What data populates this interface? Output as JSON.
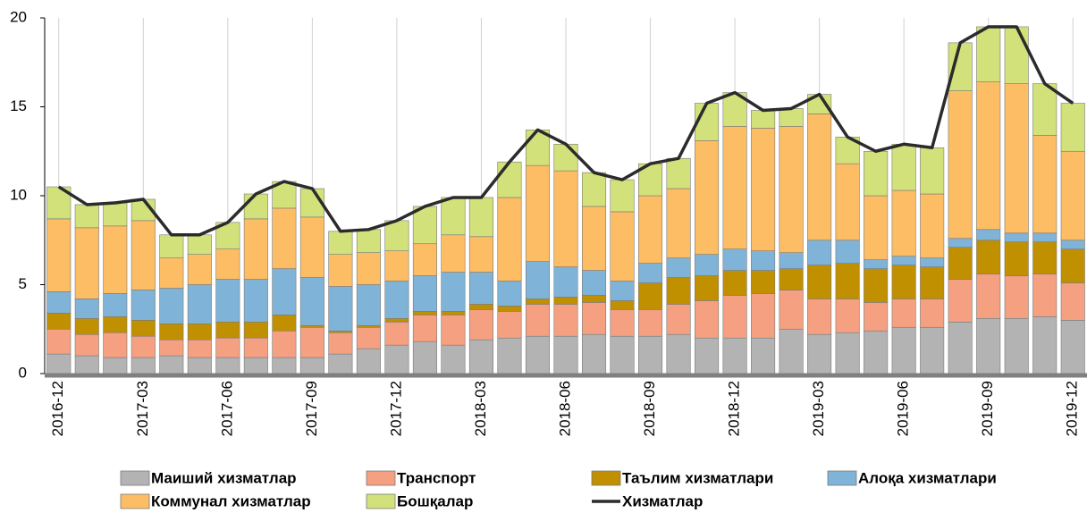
{
  "chart_data": {
    "type": "bar",
    "stacked": true,
    "categories": [
      "2016-12",
      null,
      null,
      "2017-03",
      null,
      null,
      "2017-06",
      null,
      null,
      "2017-09",
      null,
      null,
      "2017-12",
      null,
      null,
      "2018-03",
      null,
      null,
      "2018-06",
      null,
      null,
      "2018-09",
      null,
      null,
      "2018-12",
      null,
      null,
      "2019-03",
      null,
      null,
      "2019-06",
      null,
      null,
      "2019-09",
      null,
      null,
      "2019-12"
    ],
    "ylim": [
      0,
      20
    ],
    "yticks": [
      0,
      5,
      10,
      15,
      20
    ],
    "grid": true,
    "series": [
      {
        "name": "Маиший хизматлар",
        "color": "#b3b3b3",
        "values": [
          1.1,
          1.0,
          0.9,
          0.9,
          1.0,
          0.9,
          0.9,
          0.9,
          0.9,
          0.9,
          1.1,
          1.4,
          1.6,
          1.8,
          1.6,
          1.9,
          2.0,
          2.1,
          2.1,
          2.2,
          2.1,
          2.1,
          2.2,
          2.0,
          2.0,
          2.0,
          2.5,
          2.2,
          2.3,
          2.4,
          2.6,
          2.6,
          2.9,
          3.1,
          3.1,
          3.2,
          3.0
        ]
      },
      {
        "name": "Транспорт",
        "color": "#f4a081",
        "values": [
          1.4,
          1.2,
          1.4,
          1.2,
          0.9,
          1.0,
          1.1,
          1.1,
          1.5,
          1.7,
          1.2,
          1.2,
          1.3,
          1.5,
          1.7,
          1.7,
          1.5,
          1.8,
          1.8,
          1.8,
          1.5,
          1.5,
          1.7,
          2.1,
          2.4,
          2.5,
          2.2,
          2.0,
          1.9,
          1.6,
          1.6,
          1.6,
          2.4,
          2.5,
          2.4,
          2.4,
          2.1
        ]
      },
      {
        "name": "Таълим хизматлари",
        "color": "#c09000",
        "values": [
          0.9,
          0.9,
          0.9,
          0.9,
          0.9,
          0.9,
          0.9,
          0.9,
          0.9,
          0.1,
          0.1,
          0.1,
          0.2,
          0.2,
          0.2,
          0.3,
          0.3,
          0.3,
          0.4,
          0.4,
          0.5,
          1.5,
          1.5,
          1.4,
          1.4,
          1.3,
          1.2,
          1.9,
          2.0,
          1.9,
          1.9,
          1.8,
          1.8,
          1.9,
          1.9,
          1.8,
          1.9
        ]
      },
      {
        "name": "Алоқа хизматлари",
        "color": "#7fb4d8",
        "values": [
          1.2,
          1.1,
          1.3,
          1.7,
          2.0,
          2.2,
          2.4,
          2.4,
          2.6,
          2.7,
          2.5,
          2.3,
          2.1,
          2.0,
          2.2,
          1.8,
          1.4,
          2.1,
          1.7,
          1.4,
          1.1,
          1.1,
          1.1,
          1.2,
          1.2,
          1.1,
          0.9,
          1.4,
          1.3,
          0.5,
          0.5,
          0.5,
          0.5,
          0.6,
          0.5,
          0.5,
          0.5
        ]
      },
      {
        "name": "Коммунал хизматлар",
        "color": "#fdbd65",
        "values": [
          4.1,
          4.0,
          3.8,
          3.9,
          1.7,
          1.7,
          1.7,
          3.4,
          3.4,
          3.4,
          1.8,
          1.8,
          1.7,
          1.8,
          2.1,
          2.0,
          4.7,
          5.4,
          5.4,
          3.6,
          3.9,
          3.8,
          3.9,
          6.4,
          6.9,
          6.9,
          7.1,
          7.1,
          4.3,
          3.6,
          3.7,
          3.6,
          8.3,
          8.3,
          8.4,
          5.5,
          5.0
        ]
      },
      {
        "name": "Бошқалар",
        "color": "#d2e17a",
        "values": [
          1.8,
          1.3,
          1.3,
          1.2,
          1.3,
          1.1,
          1.5,
          1.4,
          1.5,
          1.6,
          1.3,
          1.3,
          1.7,
          2.1,
          2.1,
          2.2,
          2.0,
          2.0,
          1.5,
          1.9,
          1.8,
          1.8,
          1.7,
          2.1,
          1.9,
          1.0,
          1.0,
          1.1,
          1.5,
          2.5,
          2.6,
          2.6,
          2.7,
          3.1,
          3.2,
          2.9,
          2.7
        ]
      },
      {
        "name": "Хизматлар",
        "type": "line",
        "color": "#2b2b2b",
        "values": [
          10.5,
          9.5,
          9.6,
          9.8,
          7.8,
          7.8,
          8.5,
          10.1,
          10.8,
          10.4,
          8.0,
          8.1,
          8.6,
          9.4,
          9.9,
          9.9,
          11.9,
          13.7,
          12.9,
          11.3,
          10.9,
          11.8,
          12.1,
          15.2,
          15.8,
          14.8,
          14.9,
          15.7,
          13.3,
          12.5,
          12.9,
          12.7,
          18.6,
          19.5,
          19.5,
          16.3,
          15.2
        ]
      }
    ]
  }
}
